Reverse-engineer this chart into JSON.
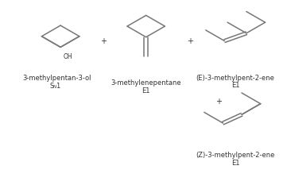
{
  "bg_color": "#ffffff",
  "line_color": "#777777",
  "text_color": "#333333",
  "font_size": 6.0,
  "lw": 1.1,
  "mol1_label": "3-methylpentan-3-ol",
  "mol1_sub_n": "S",
  "mol1_sub_N": "N",
  "mol1_sub_1": "1",
  "mol2_label": "3-methylenepentane",
  "mol2_sub": "E1",
  "mol3_label": "(E)-3-methylpent-2-ene",
  "mol3_sub": "E1",
  "mol4_label": "(Z)-3-methylpent-2-ene",
  "mol4_sub": "E1"
}
